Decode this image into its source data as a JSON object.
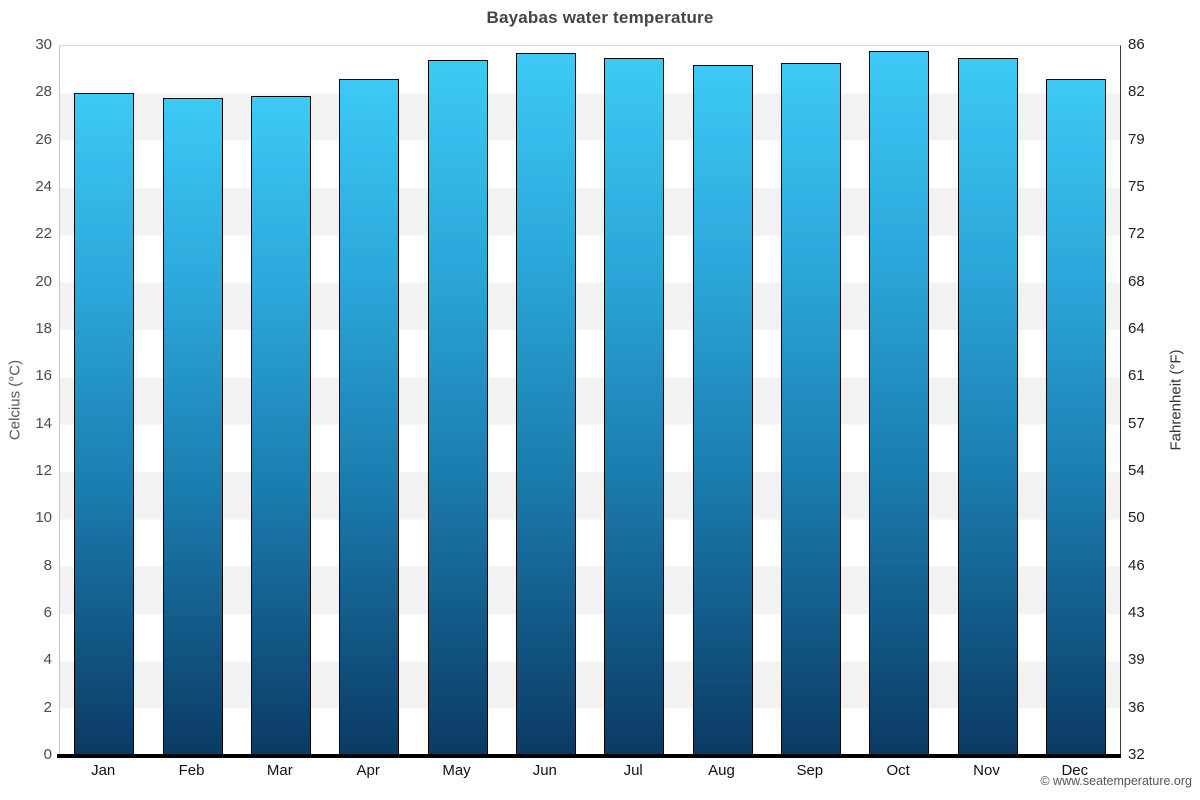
{
  "title": "Bayabas water temperature",
  "footer": "© www.seatemperature.org",
  "axes": {
    "left_label": "Celcius (°C)",
    "right_label": "Fahrenheit (°F)",
    "celsius_ticks": [
      30,
      28,
      26,
      24,
      22,
      20,
      18,
      16,
      14,
      12,
      10,
      8,
      6,
      4,
      2,
      0
    ],
    "fahrenheit_ticks": [
      86,
      82,
      79,
      75,
      72,
      68,
      64,
      61,
      57,
      54,
      50,
      46,
      43,
      39,
      36,
      32
    ]
  },
  "colors": {
    "bar_gradient_top": "#3dc9f6",
    "bar_gradient_upper_mid": "#2ba6d9",
    "bar_gradient_lower_mid": "#1a7cae",
    "bar_gradient_bottom": "#0b3a63",
    "bar_border": "#000000",
    "band_gray": "#f2f2f2",
    "band_white": "#ffffff",
    "bottom_axis": "#000000",
    "title_color": "#444444"
  },
  "chart_data": {
    "type": "bar",
    "title": "Bayabas water temperature",
    "categories": [
      "Jan",
      "Feb",
      "Mar",
      "Apr",
      "May",
      "Jun",
      "Jul",
      "Aug",
      "Sep",
      "Oct",
      "Nov",
      "Dec"
    ],
    "series": [
      {
        "name": "Water temperature (°C)",
        "values": [
          28.0,
          27.8,
          27.9,
          28.6,
          29.4,
          29.7,
          29.5,
          29.2,
          29.3,
          29.8,
          29.5,
          28.6
        ]
      }
    ],
    "xlabel": "",
    "ylabel_left": "Celcius (°C)",
    "ylabel_right": "Fahrenheit (°F)",
    "ylim_celsius": [
      0,
      30
    ],
    "ylim_fahrenheit": [
      32,
      86
    ],
    "grid": "alternating horizontal 2-degree bands, white and light gray",
    "legend": "none",
    "bar_style": "vertical gradient light cyan top to dark navy bottom, black outline"
  }
}
